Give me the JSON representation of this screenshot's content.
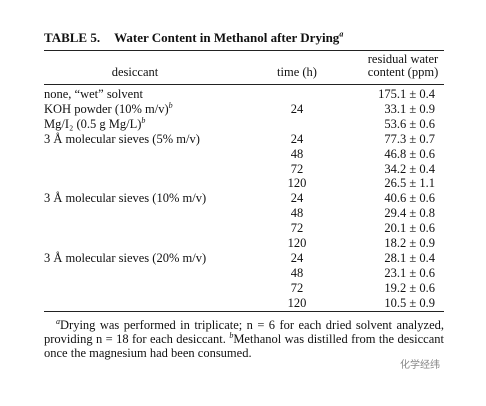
{
  "table": {
    "label": "TABLE 5.",
    "title": "Water Content in Methanol after Drying",
    "title_note": "a",
    "headers": [
      "desiccant",
      "time (h)",
      "residual water content (ppm)"
    ],
    "rows": [
      {
        "desiccant": "none, “wet” solvent",
        "water": "175.1 ± 0.4"
      },
      {
        "desiccant": "KOH powder (10% m/v)",
        "note": "b",
        "time": 24,
        "water": "33.1 ± 0.9"
      },
      {
        "desiccant": "Mg/I₂ (0.5 g Mg/L)",
        "note": "b",
        "water": "53.6 ± 0.6"
      },
      {
        "desiccant": "3 Å molecular sieves (5% m/v)",
        "time": 24,
        "water": "77.3 ± 0.7"
      },
      {
        "time": 48,
        "water": "46.8 ± 0.6"
      },
      {
        "time": 72,
        "water": "34.2 ± 0.4"
      },
      {
        "time": 120,
        "water": "26.5 ± 1.1"
      },
      {
        "desiccant": "3 Å molecular sieves (10% m/v)",
        "time": 24,
        "water": "40.6 ± 0.6"
      },
      {
        "time": 48,
        "water": "29.4 ± 0.8"
      },
      {
        "time": 72,
        "water": "20.1 ± 0.6"
      },
      {
        "time": 120,
        "water": "18.2 ± 0.9"
      },
      {
        "desiccant": "3 Å molecular sieves (20% m/v)",
        "time": 24,
        "water": "28.1 ± 0.4"
      },
      {
        "time": 48,
        "water": "23.1 ± 0.6"
      },
      {
        "time": 72,
        "water": "19.2 ± 0.6"
      },
      {
        "time": 120,
        "water": "10.5 ± 0.9"
      }
    ],
    "footnotes": [
      {
        "mark": "a",
        "text": "Drying was performed in triplicate; n = 6 for each dried solvent analyzed, providing n = 18 for each desiccant."
      },
      {
        "mark": "b",
        "text": "Methanol was distilled from the desiccant once the magnesium had been consumed."
      }
    ]
  },
  "watermark": "化学经纬"
}
